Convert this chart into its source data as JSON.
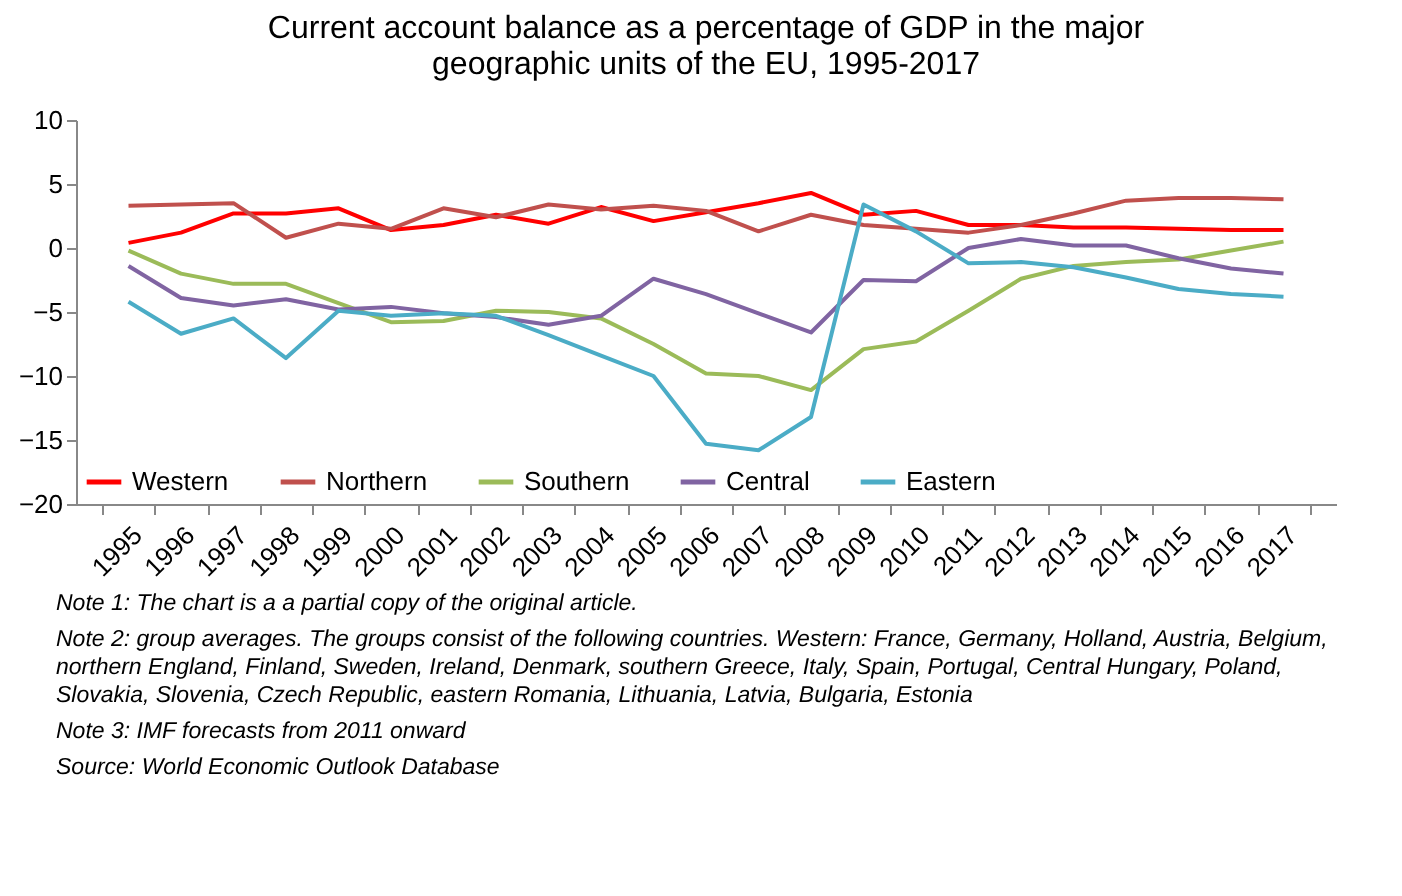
{
  "chart_data": {
    "type": "line",
    "title": "Current account balance as a percentage of GDP in the major geographic units of the EU,  1995-2017",
    "categories": [
      "1995",
      "1996",
      "1997",
      "1998",
      "1999",
      "2000",
      "2001",
      "2002",
      "2003",
      "2004",
      "2005",
      "2006",
      "2007",
      "2008",
      "2009",
      "2010",
      "2011",
      "2012",
      "2013",
      "2014",
      "2015",
      "2016",
      "2017"
    ],
    "series": [
      {
        "name": "Western",
        "color": "#ff0000",
        "values": [
          0.4,
          1.2,
          2.7,
          2.7,
          3.1,
          1.4,
          1.8,
          2.6,
          1.9,
          3.2,
          2.1,
          2.8,
          3.5,
          4.3,
          2.6,
          2.9,
          1.8,
          1.8,
          1.6,
          1.6,
          1.5,
          1.4,
          1.4
        ]
      },
      {
        "name": "Northern",
        "color": "#c0504d",
        "values": [
          3.3,
          3.4,
          3.5,
          0.8,
          1.9,
          1.5,
          3.1,
          2.4,
          3.4,
          3.0,
          3.3,
          2.9,
          1.3,
          2.6,
          1.8,
          1.5,
          1.2,
          1.8,
          2.7,
          3.7,
          3.9,
          3.9,
          3.8
        ]
      },
      {
        "name": "Southern",
        "color": "#9bbb59",
        "values": [
          -0.2,
          -2.0,
          -2.8,
          -2.8,
          -4.3,
          -5.8,
          -5.7,
          -4.9,
          -5.0,
          -5.5,
          -7.5,
          -9.8,
          -10.0,
          -11.1,
          -7.9,
          -7.3,
          -4.9,
          -2.4,
          -1.4,
          -1.1,
          -0.9,
          -0.2,
          0.5
        ]
      },
      {
        "name": "Central",
        "color": "#8064a2",
        "values": [
          -1.4,
          -3.9,
          -4.5,
          -4.0,
          -4.8,
          -4.6,
          -5.1,
          -5.4,
          -6.0,
          -5.3,
          -2.4,
          -3.6,
          -5.1,
          -6.6,
          -2.5,
          -2.6,
          0.0,
          0.7,
          0.2,
          0.2,
          -0.8,
          -1.6,
          -2.0
        ]
      },
      {
        "name": "Eastern",
        "color": "#4bacc6",
        "values": [
          -4.2,
          -6.7,
          -5.5,
          -8.6,
          -4.9,
          -5.3,
          -5.1,
          -5.3,
          -6.8,
          -8.4,
          -10.0,
          -15.3,
          -15.8,
          -13.2,
          3.4,
          1.3,
          -1.2,
          -1.1,
          -1.5,
          -2.3,
          -3.2,
          -3.6,
          -3.8
        ]
      }
    ],
    "ylim": [
      -20,
      10
    ],
    "yticks": [
      -20,
      -15,
      -10,
      -5,
      0,
      5,
      10
    ],
    "legend": "bottom",
    "grid": false,
    "annotations": [
      "Note 1: The chart is a a partial copy of the original article.",
      "Note 2: group averages. The groups consist of the following countries. Western: France, Germany, Holland, Austria, Belgium, northern England, Finland, Sweden, Ireland, Denmark, southern Greece, Italy, Spain, Portugal, Central Hungary, Poland, Slovakia, Slovenia, Czech Republic, eastern Romania, Lithuania, Latvia, Bulgaria, Estonia",
      "Note 3: IMF forecasts from 2011 onward",
      "Source: World Economic Outlook Database"
    ]
  }
}
